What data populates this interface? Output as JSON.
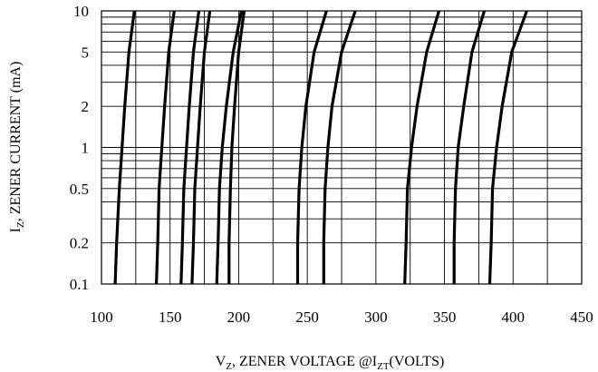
{
  "chart_data": {
    "type": "line",
    "title": "",
    "xlabel": {
      "main": "V",
      "sub": "Z",
      "rest": ", ZENER VOLTAGE  @I",
      "sub2": "ZT",
      "tail": "(VOLTS)"
    },
    "ylabel": {
      "main": "I",
      "sub": "Z",
      "rest": ", ZENER CURRENT (mA)"
    },
    "x_scale": "linear",
    "y_scale": "log",
    "xlim": [
      100,
      450
    ],
    "ylim": [
      0.1,
      10
    ],
    "x_ticks": [
      100,
      150,
      200,
      250,
      300,
      350,
      400,
      450
    ],
    "x_tick_labels": [
      "100",
      "150",
      "200",
      "250",
      "300",
      "350",
      "400",
      "450"
    ],
    "y_ticks": [
      0.1,
      0.2,
      0.5,
      1,
      2,
      5,
      10
    ],
    "y_tick_labels": [
      "0.1",
      "0.2",
      "0.5",
      "1",
      "2",
      "5",
      "10"
    ],
    "grid": true,
    "legend": "none",
    "series": [
      {
        "y": [
          0.1,
          0.2,
          0.5,
          1,
          2,
          5,
          10
        ],
        "x": [
          110,
          111,
          113,
          115,
          117,
          120,
          124
        ]
      },
      {
        "y": [
          0.1,
          0.2,
          0.5,
          1,
          2,
          5,
          10
        ],
        "x": [
          140,
          141,
          142,
          144,
          146,
          149,
          153
        ]
      },
      {
        "y": [
          0.1,
          0.2,
          0.5,
          1,
          2,
          5,
          10
        ],
        "x": [
          158,
          159,
          160,
          162,
          164,
          167,
          171
        ]
      },
      {
        "y": [
          0.1,
          0.2,
          0.5,
          1,
          2,
          5,
          10
        ],
        "x": [
          166,
          167,
          168,
          170,
          172,
          175,
          179
        ]
      },
      {
        "y": [
          0.1,
          0.2,
          0.5,
          1,
          2,
          5,
          10
        ],
        "x": [
          184,
          185,
          186,
          188,
          191,
          196,
          202
        ]
      },
      {
        "y": [
          0.1,
          0.2,
          0.5,
          1,
          2,
          5,
          10
        ],
        "x": [
          193,
          193,
          194,
          195,
          197,
          200,
          204
        ]
      },
      {
        "y": [
          0.1,
          0.2,
          0.5,
          1,
          2,
          5,
          10
        ],
        "x": [
          243,
          243,
          244,
          246,
          249,
          255,
          264
        ]
      },
      {
        "y": [
          0.1,
          0.2,
          0.5,
          1,
          2,
          5,
          10
        ],
        "x": [
          262,
          262,
          263,
          265,
          268,
          275,
          285
        ]
      },
      {
        "y": [
          0.1,
          0.2,
          0.5,
          1,
          2,
          5,
          10
        ],
        "x": [
          321,
          322,
          323,
          326,
          330,
          337,
          346
        ]
      },
      {
        "y": [
          0.1,
          0.2,
          0.5,
          1,
          2,
          5,
          10
        ],
        "x": [
          357,
          357,
          358,
          360,
          364,
          370,
          379
        ]
      },
      {
        "y": [
          0.1,
          0.2,
          0.5,
          1,
          2,
          5,
          10
        ],
        "x": [
          383,
          384,
          385,
          388,
          392,
          399,
          410
        ]
      }
    ]
  }
}
